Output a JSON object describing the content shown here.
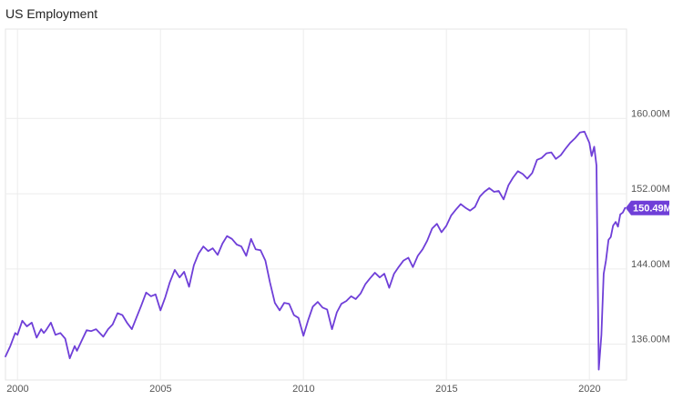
{
  "chart_data": {
    "type": "line",
    "title": "US Employment",
    "xlabel": "",
    "ylabel": "",
    "grid": true,
    "xlim": [
      1999.58,
      2021.3
    ],
    "ylim": [
      132.2,
      169.5
    ],
    "x_ticks": [
      2000,
      2005,
      2010,
      2015,
      2020
    ],
    "x_tick_labels": [
      "2000",
      "2005",
      "2010",
      "2015",
      "2020"
    ],
    "y_ticks": [
      136,
      144,
      152,
      160
    ],
    "y_tick_labels": [
      "136.00M",
      "144.00M",
      "152.00M",
      "160.00M"
    ],
    "last_value_label": "150.49M",
    "series": [
      {
        "line_color": "#6f3fd8",
        "x": [
          1999.58,
          1999.75,
          1999.92,
          2000.0,
          2000.17,
          2000.33,
          2000.5,
          2000.67,
          2000.83,
          2000.92,
          2001.0,
          2001.17,
          2001.33,
          2001.5,
          2001.67,
          2001.83,
          2002.0,
          2002.08,
          2002.25,
          2002.42,
          2002.58,
          2002.75,
          2003.0,
          2003.17,
          2003.33,
          2003.5,
          2003.67,
          2003.83,
          2004.0,
          2004.17,
          2004.33,
          2004.5,
          2004.67,
          2004.83,
          2005.0,
          2005.17,
          2005.33,
          2005.5,
          2005.67,
          2005.83,
          2006.0,
          2006.17,
          2006.33,
          2006.5,
          2006.67,
          2006.83,
          2007.0,
          2007.17,
          2007.33,
          2007.5,
          2007.67,
          2007.83,
          2008.0,
          2008.17,
          2008.33,
          2008.5,
          2008.67,
          2008.83,
          2009.0,
          2009.17,
          2009.33,
          2009.5,
          2009.67,
          2009.83,
          2010.0,
          2010.17,
          2010.33,
          2010.5,
          2010.67,
          2010.83,
          2011.0,
          2011.17,
          2011.33,
          2011.5,
          2011.67,
          2011.83,
          2012.0,
          2012.17,
          2012.33,
          2012.5,
          2012.67,
          2012.83,
          2013.0,
          2013.17,
          2013.33,
          2013.5,
          2013.67,
          2013.83,
          2014.0,
          2014.17,
          2014.33,
          2014.5,
          2014.67,
          2014.83,
          2015.0,
          2015.17,
          2015.33,
          2015.5,
          2015.67,
          2015.83,
          2016.0,
          2016.17,
          2016.33,
          2016.5,
          2016.67,
          2016.83,
          2017.0,
          2017.17,
          2017.33,
          2017.5,
          2017.67,
          2017.83,
          2018.0,
          2018.17,
          2018.33,
          2018.5,
          2018.67,
          2018.83,
          2019.0,
          2019.17,
          2019.33,
          2019.5,
          2019.67,
          2019.83,
          2020.0,
          2020.08,
          2020.17,
          2020.25,
          2020.33,
          2020.42,
          2020.5,
          2020.58,
          2020.67,
          2020.75,
          2020.83,
          2020.92,
          2021.0,
          2021.08,
          2021.17,
          2021.25
        ],
        "y": [
          134.7,
          135.8,
          137.2,
          137.0,
          138.5,
          137.9,
          138.3,
          136.7,
          137.6,
          137.2,
          137.5,
          138.3,
          137.0,
          137.2,
          136.6,
          134.5,
          135.8,
          135.3,
          136.4,
          137.5,
          137.4,
          137.6,
          136.8,
          137.6,
          138.1,
          139.3,
          139.1,
          138.3,
          137.6,
          138.9,
          140.1,
          141.5,
          141.1,
          141.3,
          139.6,
          141.0,
          142.6,
          143.9,
          143.1,
          143.7,
          142.1,
          144.4,
          145.6,
          146.4,
          145.9,
          146.2,
          145.5,
          146.7,
          147.5,
          147.2,
          146.6,
          146.4,
          145.4,
          147.2,
          146.1,
          146.0,
          144.9,
          142.6,
          140.4,
          139.6,
          140.4,
          140.3,
          139.1,
          138.8,
          136.9,
          138.6,
          140.0,
          140.5,
          139.9,
          139.7,
          137.6,
          139.4,
          140.3,
          140.6,
          141.1,
          140.8,
          141.4,
          142.4,
          143.0,
          143.6,
          143.1,
          143.5,
          142.0,
          143.5,
          144.2,
          144.9,
          145.2,
          144.2,
          145.4,
          146.1,
          147.0,
          148.3,
          148.8,
          147.9,
          148.6,
          149.7,
          150.3,
          150.9,
          150.5,
          150.2,
          150.6,
          151.7,
          152.2,
          152.6,
          152.2,
          152.3,
          151.4,
          152.9,
          153.7,
          154.4,
          154.1,
          153.6,
          154.2,
          155.6,
          155.8,
          156.3,
          156.4,
          155.7,
          156.1,
          156.8,
          157.4,
          157.9,
          158.5,
          158.6,
          157.4,
          156.0,
          157.0,
          155.0,
          133.3,
          137.0,
          143.5,
          144.9,
          147.1,
          147.4,
          148.6,
          149.0,
          148.5,
          149.8,
          150.0,
          150.49
        ]
      }
    ]
  }
}
